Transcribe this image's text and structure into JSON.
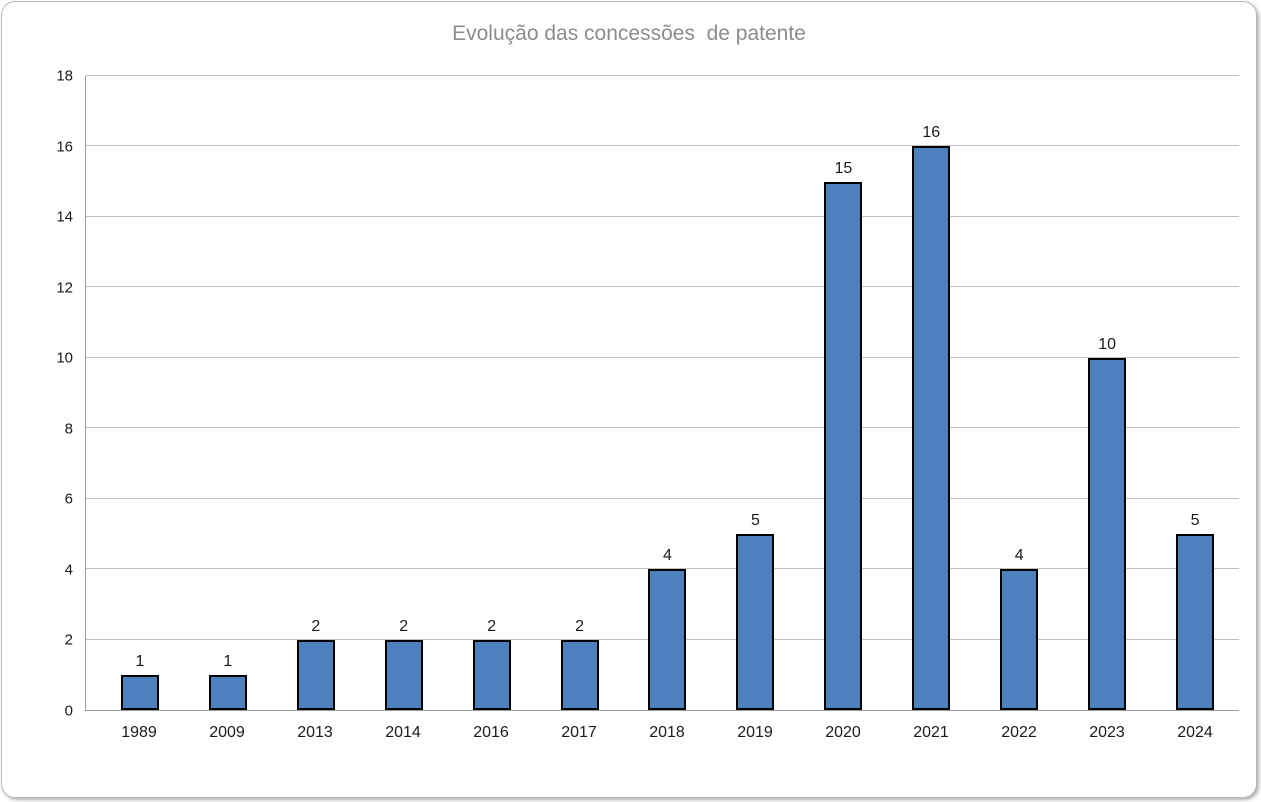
{
  "chart_data": {
    "type": "bar",
    "title": "Evolução das concessões  de patente",
    "categories": [
      "1989",
      "2009",
      "2013",
      "2014",
      "2016",
      "2017",
      "2018",
      "2019",
      "2020",
      "2021",
      "2022",
      "2023",
      "2024"
    ],
    "values": [
      1,
      1,
      2,
      2,
      2,
      2,
      4,
      5,
      15,
      16,
      4,
      10,
      5
    ],
    "xlabel": "",
    "ylabel": "",
    "ylim": [
      0,
      18
    ],
    "ytick_step": 2,
    "grid": true,
    "data_labels": true,
    "legend": "none",
    "colors": {
      "bar_fill": "#4d81bd",
      "bar_border": "#000000",
      "gridline": "#bfbfbf",
      "axis_line": "#9d9d9d",
      "title_text": "#8c8c8c",
      "tick_text": "#1a1a1a",
      "frame_border": "#b9b9b9"
    }
  }
}
